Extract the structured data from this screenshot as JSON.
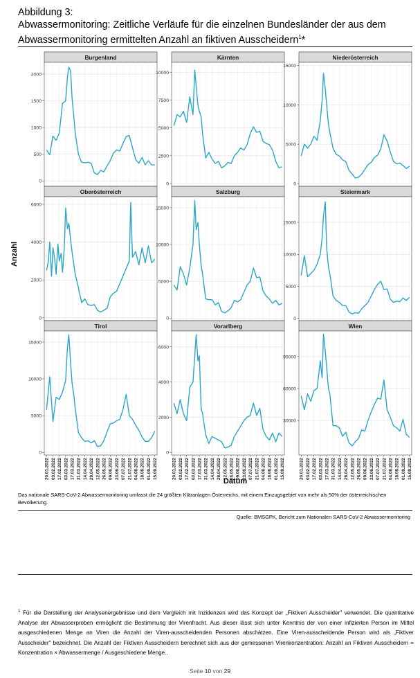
{
  "header": {
    "figure_label": "Abbildung 3:",
    "title_line1": "Abwassermonitoring: Zeitliche Verläufe für die einzelnen Bundesländer der aus dem",
    "title_line2": "Abwassermonitoring ermittelten Anzahl an fiktiven Ausscheidern",
    "title_sup": "1",
    "title_star": "*"
  },
  "chart_data": {
    "type": "line",
    "ylabel": "Anzahl",
    "xlabel": "Datum",
    "x_ticks": [
      "20.01.2022",
      "03.02.2022",
      "17.02.2022",
      "03.03.2022",
      "17.03.2022",
      "31.03.2022",
      "14.04.2022",
      "28.04.2022",
      "12.05.2022",
      "26.05.2022",
      "09.06.2022",
      "23.06.2022",
      "07.07.2022",
      "21.07.2022",
      "04.08.2022",
      "18.08.2022",
      "01.09.2022",
      "15.09.2022"
    ],
    "x_range": [
      "2022-01-15",
      "2022-09-20"
    ],
    "grid": true,
    "color": "#2aa6c9",
    "panels": [
      {
        "name": "Burgenland",
        "yticks": [
          0,
          500,
          1000,
          1500,
          2000
        ],
        "ylim": [
          -100,
          2220
        ],
        "x": [
          "2022-01-20",
          "2022-01-27",
          "2022-02-03",
          "2022-02-10",
          "2022-02-17",
          "2022-02-24",
          "2022-03-03",
          "2022-03-07",
          "2022-03-10",
          "2022-03-14",
          "2022-03-17",
          "2022-03-21",
          "2022-03-24",
          "2022-03-31",
          "2022-04-07",
          "2022-04-14",
          "2022-04-21",
          "2022-04-28",
          "2022-05-05",
          "2022-05-12",
          "2022-05-19",
          "2022-05-26",
          "2022-06-02",
          "2022-06-09",
          "2022-06-16",
          "2022-06-23",
          "2022-06-30",
          "2022-07-07",
          "2022-07-14",
          "2022-07-21",
          "2022-07-28",
          "2022-08-04",
          "2022-08-11",
          "2022-08-18",
          "2022-08-25",
          "2022-09-01",
          "2022-09-08",
          "2022-09-15"
        ],
        "values": [
          580,
          490,
          840,
          760,
          900,
          1450,
          1500,
          1950,
          2130,
          2050,
          1560,
          1200,
          900,
          500,
          350,
          340,
          350,
          330,
          150,
          120,
          200,
          170,
          280,
          380,
          520,
          580,
          560,
          700,
          830,
          850,
          620,
          400,
          330,
          440,
          300,
          380,
          300,
          300
        ]
      },
      {
        "name": "Kärnten",
        "yticks": [
          0,
          2500,
          5000,
          7500,
          10000
        ],
        "ylim": [
          -250,
          10900
        ],
        "x": [
          "2022-01-20",
          "2022-01-27",
          "2022-02-03",
          "2022-02-10",
          "2022-02-17",
          "2022-02-24",
          "2022-03-03",
          "2022-03-07",
          "2022-03-10",
          "2022-03-14",
          "2022-03-17",
          "2022-03-21",
          "2022-03-24",
          "2022-03-31",
          "2022-04-07",
          "2022-04-14",
          "2022-04-21",
          "2022-04-28",
          "2022-05-05",
          "2022-05-12",
          "2022-05-19",
          "2022-05-26",
          "2022-06-02",
          "2022-06-09",
          "2022-06-16",
          "2022-06-23",
          "2022-06-30",
          "2022-07-07",
          "2022-07-14",
          "2022-07-21",
          "2022-07-28",
          "2022-08-04",
          "2022-08-11",
          "2022-08-18",
          "2022-08-25",
          "2022-09-01",
          "2022-09-08",
          "2022-09-15"
        ],
        "values": [
          5200,
          6200,
          6000,
          6500,
          5500,
          7800,
          6200,
          10200,
          8800,
          7000,
          6500,
          6000,
          4500,
          2300,
          2800,
          2200,
          1800,
          2000,
          1400,
          1600,
          1900,
          1800,
          2500,
          2800,
          3200,
          3000,
          3500,
          4500,
          5100,
          4600,
          4700,
          3800,
          3600,
          3500,
          3000,
          2000,
          1400,
          1500
        ]
      },
      {
        "name": "Niederösterreich",
        "yticks": [
          0,
          5000,
          10000,
          15000
        ],
        "ylim": [
          -350,
          15400
        ],
        "x": [
          "2022-01-20",
          "2022-01-27",
          "2022-02-03",
          "2022-02-10",
          "2022-02-17",
          "2022-02-24",
          "2022-03-03",
          "2022-03-07",
          "2022-03-10",
          "2022-03-14",
          "2022-03-17",
          "2022-03-21",
          "2022-03-24",
          "2022-03-31",
          "2022-04-07",
          "2022-04-14",
          "2022-04-21",
          "2022-04-28",
          "2022-05-05",
          "2022-05-12",
          "2022-05-19",
          "2022-05-26",
          "2022-06-02",
          "2022-06-09",
          "2022-06-16",
          "2022-06-23",
          "2022-06-30",
          "2022-07-07",
          "2022-07-14",
          "2022-07-21",
          "2022-07-28",
          "2022-08-04",
          "2022-08-11",
          "2022-08-18",
          "2022-08-25",
          "2022-09-01",
          "2022-09-08",
          "2022-09-15"
        ],
        "values": [
          3500,
          5000,
          4500,
          5000,
          6000,
          5500,
          8000,
          10500,
          14000,
          12000,
          10000,
          7500,
          6500,
          4500,
          3700,
          3500,
          3000,
          2800,
          1700,
          1200,
          700,
          800,
          1200,
          1800,
          2400,
          2700,
          3300,
          3600,
          4400,
          6200,
          5400,
          4000,
          2800,
          2500,
          2600,
          2300,
          1900,
          2200
        ]
      },
      {
        "name": "Oberösterreich",
        "yticks": [
          0,
          2000,
          4000,
          6000
        ],
        "ylim": [
          -150,
          6400
        ],
        "x": [
          "2022-01-20",
          "2022-01-24",
          "2022-01-27",
          "2022-01-31",
          "2022-02-03",
          "2022-02-07",
          "2022-02-10",
          "2022-02-14",
          "2022-02-17",
          "2022-02-21",
          "2022-02-24",
          "2022-02-28",
          "2022-03-03",
          "2022-03-07",
          "2022-03-10",
          "2022-03-14",
          "2022-03-17",
          "2022-03-24",
          "2022-03-31",
          "2022-04-07",
          "2022-04-14",
          "2022-04-21",
          "2022-04-28",
          "2022-05-05",
          "2022-05-12",
          "2022-05-19",
          "2022-05-26",
          "2022-06-02",
          "2022-06-09",
          "2022-06-16",
          "2022-06-23",
          "2022-06-30",
          "2022-07-07",
          "2022-07-14",
          "2022-07-21",
          "2022-07-24",
          "2022-07-28",
          "2022-08-04",
          "2022-08-11",
          "2022-08-18",
          "2022-08-25",
          "2022-09-01",
          "2022-09-08",
          "2022-09-15"
        ],
        "values": [
          2500,
          3000,
          4000,
          2200,
          3700,
          3100,
          2300,
          3900,
          3000,
          3400,
          2400,
          3700,
          5800,
          4700,
          5000,
          4100,
          3500,
          2300,
          1600,
          800,
          1000,
          700,
          650,
          700,
          400,
          300,
          400,
          500,
          1100,
          1300,
          1400,
          1800,
          2200,
          2600,
          3000,
          6100,
          3200,
          3500,
          2800,
          3700,
          2900,
          3800,
          2900,
          3100
        ]
      },
      {
        "name": "Salzburg",
        "yticks": [
          0,
          5000,
          10000,
          15000
        ],
        "ylim": [
          -350,
          16500
        ],
        "x": [
          "2022-01-20",
          "2022-01-27",
          "2022-02-03",
          "2022-02-10",
          "2022-02-17",
          "2022-02-24",
          "2022-03-03",
          "2022-03-07",
          "2022-03-10",
          "2022-03-14",
          "2022-03-17",
          "2022-03-21",
          "2022-03-24",
          "2022-03-31",
          "2022-04-07",
          "2022-04-14",
          "2022-04-21",
          "2022-04-28",
          "2022-05-05",
          "2022-05-12",
          "2022-05-19",
          "2022-05-26",
          "2022-06-02",
          "2022-06-09",
          "2022-06-16",
          "2022-06-23",
          "2022-06-30",
          "2022-07-07",
          "2022-07-14",
          "2022-07-21",
          "2022-07-28",
          "2022-08-04",
          "2022-08-11",
          "2022-08-18",
          "2022-08-25",
          "2022-09-01",
          "2022-09-08",
          "2022-09-15"
        ],
        "values": [
          4500,
          3800,
          7000,
          6000,
          4500,
          6800,
          10000,
          16000,
          12000,
          13000,
          10000,
          7200,
          6000,
          2600,
          2500,
          2500,
          1800,
          2100,
          900,
          700,
          1000,
          1400,
          2400,
          2200,
          2500,
          3500,
          4500,
          5000,
          6800,
          5500,
          5600,
          3700,
          3000,
          2600,
          2000,
          2400,
          1800,
          2000
        ]
      },
      {
        "name": "Steiermark",
        "yticks": [
          0,
          5000,
          10000,
          15000
        ],
        "ylim": [
          -350,
          19000
        ],
        "x": [
          "2022-01-20",
          "2022-01-27",
          "2022-02-03",
          "2022-02-10",
          "2022-02-17",
          "2022-02-24",
          "2022-03-03",
          "2022-03-07",
          "2022-03-10",
          "2022-03-14",
          "2022-03-17",
          "2022-03-21",
          "2022-03-24",
          "2022-03-31",
          "2022-04-07",
          "2022-04-14",
          "2022-04-21",
          "2022-04-28",
          "2022-05-05",
          "2022-05-12",
          "2022-05-19",
          "2022-05-26",
          "2022-06-02",
          "2022-06-09",
          "2022-06-16",
          "2022-06-23",
          "2022-06-30",
          "2022-07-07",
          "2022-07-14",
          "2022-07-21",
          "2022-07-28",
          "2022-08-04",
          "2022-08-11",
          "2022-08-18",
          "2022-08-25",
          "2022-09-01",
          "2022-09-08",
          "2022-09-15"
        ],
        "values": [
          6700,
          9800,
          6500,
          7000,
          7500,
          8500,
          10000,
          12500,
          16000,
          18200,
          11000,
          8000,
          7000,
          3500,
          2800,
          2500,
          2000,
          2000,
          1000,
          700,
          900,
          800,
          1500,
          2000,
          2500,
          3500,
          4500,
          5300,
          5800,
          4500,
          4600,
          3000,
          2500,
          2700,
          2600,
          3200,
          2800,
          3300
        ]
      },
      {
        "name": "Tirol",
        "yticks": [
          0,
          5000,
          10000,
          15000
        ],
        "ylim": [
          -350,
          16500
        ],
        "x": [
          "2022-01-20",
          "2022-01-27",
          "2022-02-03",
          "2022-02-10",
          "2022-02-17",
          "2022-02-24",
          "2022-03-03",
          "2022-03-07",
          "2022-03-10",
          "2022-03-14",
          "2022-03-17",
          "2022-03-21",
          "2022-03-24",
          "2022-03-31",
          "2022-04-07",
          "2022-04-14",
          "2022-04-21",
          "2022-04-28",
          "2022-05-05",
          "2022-05-12",
          "2022-05-19",
          "2022-05-26",
          "2022-06-02",
          "2022-06-09",
          "2022-06-16",
          "2022-06-23",
          "2022-06-30",
          "2022-07-07",
          "2022-07-14",
          "2022-07-21",
          "2022-07-28",
          "2022-08-04",
          "2022-08-11",
          "2022-08-18",
          "2022-08-25",
          "2022-09-01",
          "2022-09-08",
          "2022-09-15"
        ],
        "values": [
          5800,
          10300,
          4200,
          7500,
          7200,
          8200,
          9800,
          14300,
          16000,
          12000,
          9500,
          7800,
          6000,
          2700,
          2000,
          1500,
          1600,
          1300,
          1600,
          800,
          900,
          1600,
          2800,
          3900,
          4000,
          4300,
          4500,
          5800,
          7900,
          5000,
          4500,
          3700,
          3000,
          2100,
          1500,
          1500,
          2000,
          2900
        ]
      },
      {
        "name": "Vorarlberg",
        "yticks": [
          0,
          2000,
          4000,
          6000
        ],
        "ylim": [
          -150,
          6900
        ],
        "x": [
          "2022-01-20",
          "2022-01-27",
          "2022-02-03",
          "2022-02-10",
          "2022-02-17",
          "2022-02-24",
          "2022-03-03",
          "2022-03-07",
          "2022-03-10",
          "2022-03-14",
          "2022-03-17",
          "2022-03-21",
          "2022-03-24",
          "2022-03-31",
          "2022-04-07",
          "2022-04-14",
          "2022-04-21",
          "2022-04-28",
          "2022-05-05",
          "2022-05-12",
          "2022-05-19",
          "2022-05-26",
          "2022-06-02",
          "2022-06-09",
          "2022-06-16",
          "2022-06-23",
          "2022-06-30",
          "2022-07-07",
          "2022-07-14",
          "2022-07-21",
          "2022-07-28",
          "2022-08-04",
          "2022-08-11",
          "2022-08-18",
          "2022-08-25",
          "2022-09-01",
          "2022-09-08",
          "2022-09-15"
        ],
        "values": [
          2800,
          2200,
          3000,
          2200,
          1800,
          3700,
          4000,
          5500,
          6700,
          5200,
          5500,
          2500,
          2200,
          1000,
          500,
          900,
          800,
          700,
          600,
          250,
          300,
          400,
          900,
          1200,
          1500,
          1800,
          2000,
          2100,
          2800,
          2100,
          2500,
          1300,
          900,
          700,
          1100,
          600,
          1100,
          900
        ]
      },
      {
        "name": "Wien",
        "yticks": [
          30000,
          60000,
          90000
        ],
        "ylim": [
          -2500,
          114000
        ],
        "x": [
          "2022-01-20",
          "2022-01-27",
          "2022-02-03",
          "2022-02-10",
          "2022-02-17",
          "2022-02-24",
          "2022-03-03",
          "2022-03-07",
          "2022-03-10",
          "2022-03-14",
          "2022-03-17",
          "2022-03-21",
          "2022-03-24",
          "2022-03-31",
          "2022-04-07",
          "2022-04-14",
          "2022-04-21",
          "2022-04-28",
          "2022-05-05",
          "2022-05-12",
          "2022-05-19",
          "2022-05-26",
          "2022-06-02",
          "2022-06-09",
          "2022-06-16",
          "2022-06-23",
          "2022-06-30",
          "2022-07-07",
          "2022-07-14",
          "2022-07-21",
          "2022-07-28",
          "2022-08-04",
          "2022-08-11",
          "2022-08-18",
          "2022-08-25",
          "2022-09-01",
          "2022-09-08",
          "2022-09-15"
        ],
        "values": [
          53000,
          40000,
          55000,
          48000,
          58000,
          60000,
          86000,
          70000,
          111000,
          95000,
          80000,
          60000,
          55000,
          25000,
          25000,
          23000,
          15000,
          19000,
          9000,
          6000,
          10000,
          13000,
          21000,
          20000,
          30000,
          38000,
          45000,
          51000,
          50000,
          68000,
          40000,
          33000,
          25000,
          23000,
          20000,
          31000,
          17000,
          14000
        ]
      }
    ]
  },
  "note": "Das nationale SARS-CoV-2 Abwassermonitoring umfasst die 24 größten Kläranlagen Österreichs, mit einem Einzugsgebiet von mehr als 50% der österreichischen Bevölkerung.",
  "source": "Quelle: BMSGPK, Bericht zum Nationalen SARS-CoV-2 Abwassermonitoring",
  "footnote": {
    "marker": "1",
    "text": "Für die Darstellung der Analysenergebnisse und dem Vergleich mit Inzidenzen wird das Konzept der „Fiktiven Ausscheider\" verwendet. Die quantitative Analyse der Abwasserproben ermöglicht die Bestimmung der Virenfracht. Aus dieser lässt sich unter Kenntnis der von einer infizierten Person im Mittel ausgeschiedenen Menge an Viren die Anzahl der Viren-ausscheidenden Personen abschätzen. Eine Viren-ausscheidende Person wird als „Fiktiver Ausscheider\" bezeichnet. Die Anzahl der Fiktiven Ausscheidern berechnet sich aus der gemessenen Virenkonzentration: Anzahl an Fiktiven Ausscheidern = Konzentration × Abwassermenge / Ausgeschiedene Menge.."
  },
  "page": {
    "prefix": "Seite ",
    "current": "10",
    "middle": " von ",
    "total": "29"
  }
}
